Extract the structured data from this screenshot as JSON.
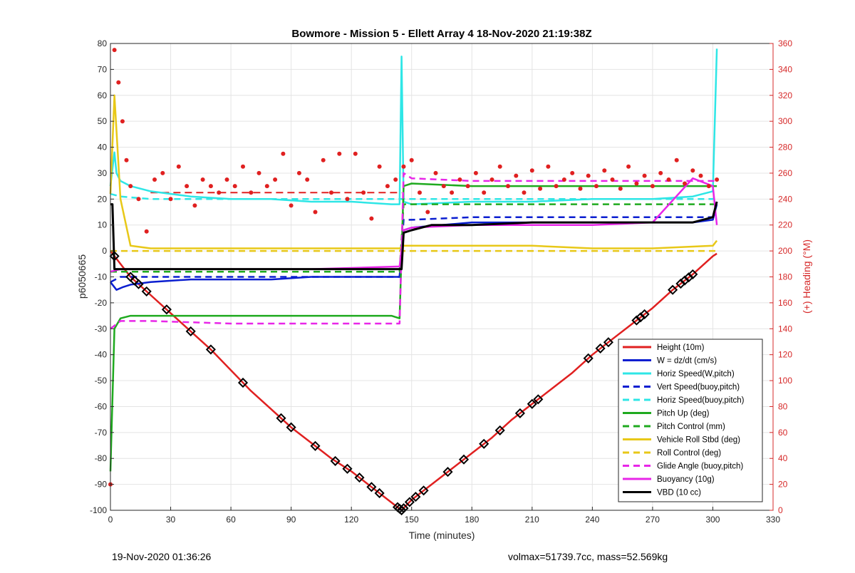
{
  "chart_data": {
    "type": "line",
    "title": "Bowmore - Mission 5 - Ellett Array 4 18-Nov-2020 21:19:38Z",
    "xlabel": "Time (minutes)",
    "ylabel_left": "p6050665",
    "ylabel_right": "(+) Heading (°M)",
    "xlim": [
      0,
      330
    ],
    "ylim_left": [
      -100,
      80
    ],
    "ylim_right": [
      0,
      360
    ],
    "x_ticks": [
      0,
      30,
      60,
      90,
      120,
      150,
      180,
      210,
      240,
      270,
      300,
      330
    ],
    "y_ticks_left": [
      80,
      70,
      60,
      50,
      40,
      30,
      20,
      10,
      0,
      -10,
      -20,
      -30,
      -40,
      -50,
      -60,
      -70,
      -80,
      -90,
      -100
    ],
    "y_ticks_right": [
      360,
      340,
      320,
      300,
      280,
      260,
      240,
      220,
      200,
      180,
      160,
      140,
      120,
      100,
      80,
      60,
      40,
      20,
      0
    ],
    "grid": true,
    "legend_position": "bottom-right",
    "colors": {
      "height": "#e02020",
      "w": "#0a1ed0",
      "horiz": "#2ee6e6",
      "vert_buoy": "#0a1ed0",
      "horiz_buoy": "#2ee6e6",
      "pitch": "#1faa1f",
      "pitch_control": "#1faa1f",
      "roll": "#e8c818",
      "roll_control": "#e8c818",
      "glide": "#e826e8",
      "buoyancy": "#e826e8",
      "vbd": "#000000",
      "heading": "#e02020",
      "right_axis": "#d62828"
    },
    "series": [
      {
        "name": "Height (10m)",
        "color": "#e02020",
        "style": "solid",
        "x": [
          0,
          10,
          20,
          30,
          40,
          50,
          60,
          70,
          80,
          90,
          100,
          110,
          120,
          130,
          140,
          145,
          150,
          160,
          170,
          180,
          190,
          200,
          210,
          220,
          230,
          240,
          250,
          260,
          270,
          280,
          290,
          300,
          302
        ],
        "y": [
          0,
          -10,
          -17,
          -24,
          -31,
          -38,
          -46,
          -54,
          -61,
          -68,
          -74,
          -80,
          -85,
          -91,
          -97,
          -100,
          -96,
          -90,
          -84,
          -78,
          -72,
          -65,
          -59,
          -53,
          -47,
          -40,
          -34,
          -28,
          -22,
          -15,
          -9,
          -2,
          -1
        ]
      },
      {
        "name": "W = dz/dt (cm/s)",
        "color": "#0a1ed0",
        "style": "solid",
        "x": [
          0,
          3,
          6,
          10,
          20,
          40,
          60,
          80,
          100,
          120,
          140,
          144,
          146,
          150,
          180,
          210,
          240,
          270,
          290,
          300,
          302
        ],
        "y": [
          -12,
          -15,
          -14,
          -13,
          -12,
          -11,
          -11,
          -11,
          -10,
          -10,
          -10,
          -10,
          8,
          9,
          11,
          11,
          11,
          11,
          11,
          12,
          18
        ]
      },
      {
        "name": "Horiz Speed(W,pitch)",
        "color": "#2ee6e6",
        "style": "solid",
        "x": [
          0,
          2,
          3,
          5,
          10,
          20,
          40,
          60,
          80,
          100,
          120,
          140,
          144,
          145,
          146,
          150,
          180,
          210,
          240,
          270,
          290,
          300,
          302
        ],
        "y": [
          25,
          38,
          30,
          27,
          25,
          23,
          21,
          20,
          20,
          19,
          19,
          18,
          18,
          75,
          19,
          18,
          19,
          19,
          20,
          20,
          21,
          23,
          78
        ]
      },
      {
        "name": "Vert Speed(buoy,pitch)",
        "color": "#0a1ed0",
        "style": "dash",
        "x": [
          0,
          5,
          20,
          60,
          100,
          144,
          146,
          150,
          180,
          210,
          240,
          270,
          300,
          302
        ],
        "y": [
          -12,
          -10,
          -10,
          -10,
          -10,
          -10,
          12,
          12,
          13,
          13,
          13,
          13,
          13,
          18
        ]
      },
      {
        "name": "Horiz Speed(buoy,pitch)",
        "color": "#2ee6e6",
        "style": "dash",
        "x": [
          0,
          5,
          20,
          60,
          100,
          144,
          146,
          150,
          180,
          210,
          240,
          270,
          300,
          302
        ],
        "y": [
          22,
          21,
          20,
          20,
          20,
          20,
          20,
          20,
          20,
          20,
          20,
          20,
          20,
          21
        ]
      },
      {
        "name": "Pitch Up (deg)",
        "color": "#1faa1f",
        "style": "solid",
        "x": [
          0,
          2,
          5,
          10,
          20,
          40,
          60,
          80,
          100,
          120,
          140,
          144,
          146,
          150,
          180,
          210,
          240,
          270,
          300,
          302
        ],
        "y": [
          -85,
          -30,
          -26,
          -25,
          -25,
          -25,
          -25,
          -25,
          -25,
          -25,
          -25,
          -26,
          25,
          26,
          25,
          25,
          25,
          25,
          25,
          25
        ]
      },
      {
        "name": "Pitch Control (mm)",
        "color": "#1faa1f",
        "style": "dash",
        "x": [
          0,
          5,
          20,
          60,
          100,
          144,
          146,
          150,
          180,
          210,
          240,
          270,
          300,
          302
        ],
        "y": [
          -8,
          -8,
          -8,
          -8,
          -8,
          -8,
          18,
          18,
          18,
          18,
          18,
          18,
          18,
          18
        ]
      },
      {
        "name": "Vehicle Roll Stbd (deg)",
        "color": "#e8c818",
        "style": "solid",
        "x": [
          0,
          2,
          5,
          10,
          20,
          40,
          60,
          80,
          100,
          120,
          140,
          144,
          146,
          150,
          180,
          210,
          240,
          270,
          300,
          302
        ],
        "y": [
          22,
          60,
          20,
          2,
          1,
          1,
          1,
          1,
          1,
          1,
          1,
          1,
          2,
          2,
          2,
          2,
          1,
          1,
          2,
          4
        ]
      },
      {
        "name": "Roll Control (deg)",
        "color": "#e8c818",
        "style": "dash",
        "x": [
          0,
          5,
          20,
          60,
          100,
          144,
          146,
          150,
          180,
          210,
          240,
          270,
          300,
          302
        ],
        "y": [
          0,
          0,
          0,
          0,
          0,
          0,
          0,
          0,
          0,
          0,
          0,
          0,
          0,
          0
        ]
      },
      {
        "name": "Glide Angle (buoy,pitch)",
        "color": "#e826e8",
        "style": "dash",
        "x": [
          0,
          5,
          20,
          60,
          100,
          144,
          146,
          150,
          180,
          210,
          240,
          270,
          300,
          302
        ],
        "y": [
          -30,
          -27,
          -27,
          -28,
          -28,
          -28,
          30,
          28,
          27,
          27,
          27,
          27,
          27,
          27
        ]
      },
      {
        "name": "Buoyancy (10g)",
        "color": "#e826e8",
        "style": "solid",
        "x": [
          0,
          5,
          20,
          60,
          100,
          144,
          146,
          150,
          180,
          210,
          240,
          270,
          290,
          300,
          302
        ],
        "y": [
          -8,
          -7,
          -7,
          -7,
          -7,
          -6,
          8,
          9,
          10,
          10,
          10,
          11,
          28,
          25,
          10
        ]
      },
      {
        "name": "VBD (10 cc)",
        "color": "#000000",
        "style": "solid",
        "x": [
          0,
          1,
          2,
          145,
          146,
          150,
          160,
          180,
          210,
          240,
          270,
          290,
          300,
          302
        ],
        "y": [
          18,
          18,
          -7,
          -7,
          7,
          8,
          10,
          10,
          11,
          11,
          11,
          11,
          13,
          19
        ]
      }
    ],
    "heading_series": {
      "name": "(+) Heading (°M)",
      "color": "#e02020",
      "x": [
        0,
        2,
        4,
        6,
        8,
        10,
        14,
        18,
        22,
        26,
        30,
        34,
        38,
        42,
        46,
        50,
        54,
        58,
        62,
        66,
        70,
        74,
        78,
        82,
        86,
        90,
        94,
        98,
        102,
        106,
        110,
        114,
        118,
        122,
        126,
        130,
        134,
        138,
        142,
        146,
        150,
        154,
        158,
        162,
        166,
        170,
        174,
        178,
        182,
        186,
        190,
        194,
        198,
        202,
        206,
        210,
        214,
        218,
        222,
        226,
        230,
        234,
        238,
        242,
        246,
        250,
        254,
        258,
        262,
        266,
        270,
        274,
        278,
        282,
        286,
        290,
        294,
        298,
        302
      ],
      "y": [
        20,
        355,
        330,
        300,
        270,
        250,
        240,
        215,
        255,
        260,
        240,
        265,
        250,
        235,
        255,
        250,
        245,
        255,
        250,
        265,
        245,
        260,
        250,
        255,
        275,
        235,
        260,
        255,
        230,
        270,
        245,
        275,
        240,
        275,
        245,
        225,
        265,
        250,
        255,
        265,
        270,
        245,
        230,
        260,
        250,
        245,
        255,
        250,
        260,
        245,
        255,
        265,
        250,
        258,
        245,
        262,
        248,
        265,
        250,
        255,
        260,
        248,
        258,
        250,
        262,
        255,
        248,
        265,
        252,
        258,
        250,
        260,
        255,
        270,
        252,
        262,
        258,
        250,
        255
      ]
    },
    "heading_reference": 245,
    "height_marker_x": [
      2,
      10,
      12,
      14,
      18,
      28,
      40,
      50,
      66,
      85,
      90,
      102,
      112,
      118,
      124,
      130,
      134,
      143,
      144,
      145,
      146,
      149,
      152,
      156,
      168,
      176,
      186,
      194,
      204,
      210,
      213,
      238,
      244,
      248,
      262,
      264,
      266,
      280,
      284,
      286,
      288,
      290
    ]
  },
  "footer": {
    "left": "19-Nov-2020 01:36:26",
    "right": "volmax=51739.7cc, mass=52.569kg"
  }
}
